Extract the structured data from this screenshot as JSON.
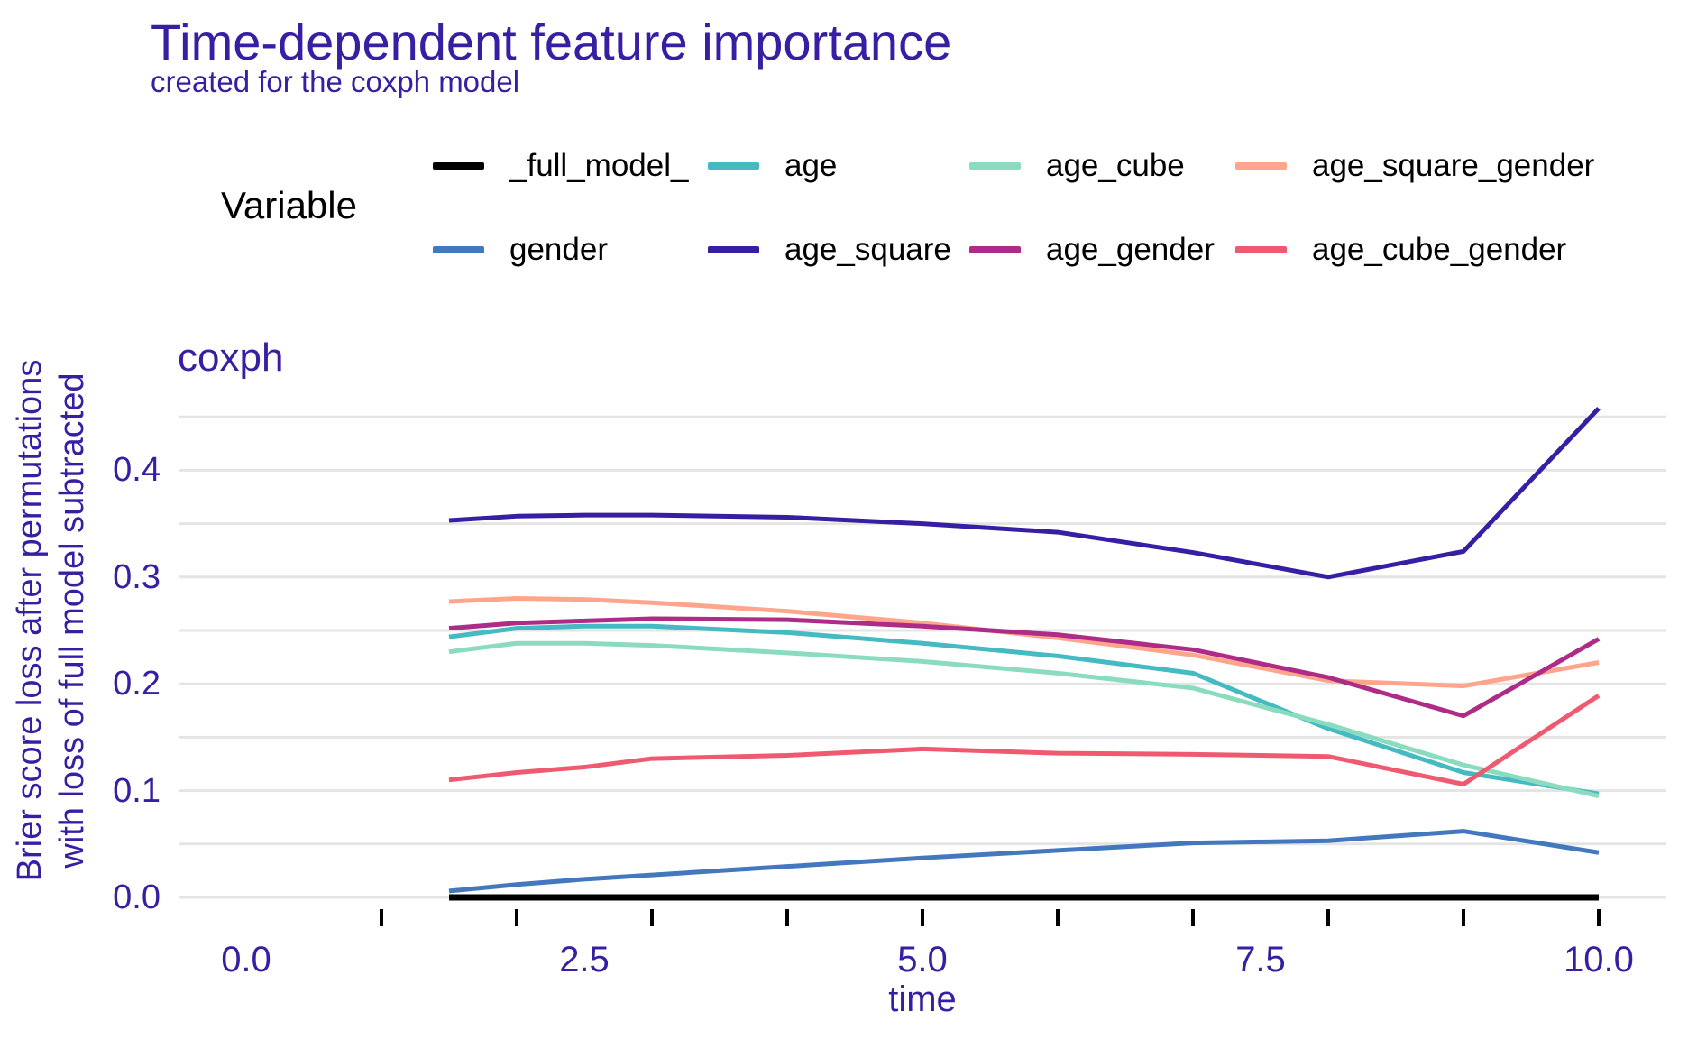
{
  "title": "Time-dependent feature importance",
  "subtitle": "created for the coxph model",
  "facet_label": "coxph",
  "axis": {
    "x_title": "time",
    "y_title_line1": "Brier score loss after permutations",
    "y_title_line2": "with loss of full model subtracted"
  },
  "colors": {
    "accent_text": "#371ea3",
    "legend_text": "#000000",
    "gridline": "#e4e4e4",
    "tick": "#000000"
  },
  "legend": {
    "title": "Variable",
    "rows": [
      [
        {
          "label": "_full_model_",
          "color": "#000000"
        },
        {
          "label": "age",
          "color": "#46bac2"
        },
        {
          "label": "age_cube",
          "color": "#8bdcbe"
        },
        {
          "label": "age_square_gender",
          "color": "#ffa58c"
        }
      ],
      [
        {
          "label": "gender",
          "color": "#4378bf"
        },
        {
          "label": "age_square",
          "color": "#371ea3"
        },
        {
          "label": "age_gender",
          "color": "#ae2c87"
        },
        {
          "label": "age_cube_gender",
          "color": "#f05a71"
        }
      ]
    ]
  },
  "chart_data": {
    "type": "line",
    "title": "Time-dependent feature importance",
    "subtitle": "created for the coxph model",
    "facet": "coxph",
    "xlabel": "time",
    "ylabel": "Brier score loss after permutations with loss of full model subtracted",
    "xlim": [
      -0.5,
      10.5
    ],
    "ylim": [
      -0.025,
      0.48
    ],
    "grid": "horizontal-only",
    "legend_position": "top",
    "x_tick_marks": [
      1,
      2,
      3,
      4,
      5,
      6,
      7,
      8,
      9,
      10
    ],
    "x_label_ticks": [
      0,
      2.5,
      5,
      7.5,
      10
    ],
    "x_tick_labels": [
      "0.0",
      "2.5",
      "5.0",
      "7.5",
      "10.0"
    ],
    "y_ticks": [
      0,
      0.1,
      0.2,
      0.3,
      0.4
    ],
    "y_tick_labels": [
      "0.0",
      "0.1",
      "0.2",
      "0.3",
      "0.4"
    ],
    "gridline_values": [
      0,
      0.05,
      0.1,
      0.15,
      0.2,
      0.25,
      0.3,
      0.35,
      0.4,
      0.45
    ],
    "x": [
      1.5,
      2,
      2.5,
      3,
      4,
      5,
      6,
      7,
      8,
      9,
      10
    ],
    "series": [
      {
        "name": "_full_model_",
        "color": "#000000",
        "values": [
          0,
          0,
          0,
          0,
          0,
          0,
          0,
          0,
          0,
          0,
          0
        ]
      },
      {
        "name": "gender",
        "color": "#4378bf",
        "values": [
          0.006,
          0.012,
          0.017,
          0.021,
          0.029,
          0.037,
          0.044,
          0.051,
          0.053,
          0.062,
          0.042
        ]
      },
      {
        "name": "age",
        "color": "#46bac2",
        "values": [
          0.244,
          0.252,
          0.254,
          0.254,
          0.248,
          0.238,
          0.226,
          0.21,
          0.158,
          0.117,
          0.097
        ]
      },
      {
        "name": "age_cube",
        "color": "#8bdcbe",
        "values": [
          0.23,
          0.238,
          0.238,
          0.236,
          0.229,
          0.221,
          0.21,
          0.196,
          0.162,
          0.124,
          0.095
        ]
      },
      {
        "name": "age_square",
        "color": "#371ea3",
        "values": [
          0.353,
          0.357,
          0.358,
          0.358,
          0.356,
          0.35,
          0.342,
          0.323,
          0.3,
          0.324,
          0.458
        ]
      },
      {
        "name": "age_square_gender",
        "color": "#ffa58c",
        "values": [
          0.277,
          0.28,
          0.279,
          0.276,
          0.268,
          0.257,
          0.243,
          0.227,
          0.203,
          0.198,
          0.22
        ]
      },
      {
        "name": "age_gender",
        "color": "#ae2c87",
        "values": [
          0.252,
          0.257,
          0.259,
          0.261,
          0.26,
          0.254,
          0.246,
          0.232,
          0.206,
          0.17,
          0.242
        ]
      },
      {
        "name": "age_cube_gender",
        "color": "#f05a71",
        "values": [
          0.11,
          0.117,
          0.122,
          0.13,
          0.133,
          0.139,
          0.135,
          0.134,
          0.132,
          0.106,
          0.189
        ]
      }
    ]
  }
}
